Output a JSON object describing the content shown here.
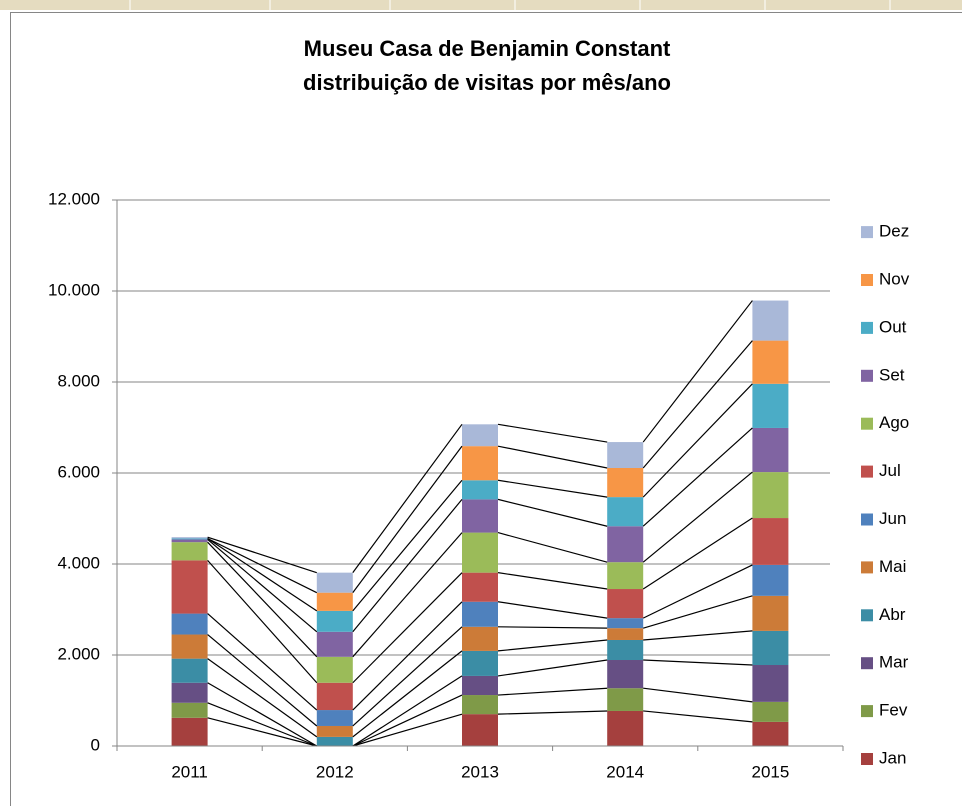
{
  "chart_data": {
    "type": "stacked_bar",
    "title": [
      "Museu Casa de Benjamin Constant",
      "distribuição de visitas por mês/ano"
    ],
    "categories": [
      "2011",
      "2012",
      "2013",
      "2014",
      "2015"
    ],
    "series": [
      {
        "name": "Jan",
        "color": "#a5403e",
        "values": [
          620,
          0,
          700,
          770,
          530
        ]
      },
      {
        "name": "Fev",
        "color": "#7f9a48",
        "values": [
          330,
          0,
          420,
          500,
          440
        ]
      },
      {
        "name": "Mar",
        "color": "#664f84",
        "values": [
          440,
          0,
          420,
          620,
          810
        ]
      },
      {
        "name": "Abr",
        "color": "#3b8da5",
        "values": [
          530,
          200,
          550,
          440,
          750
        ]
      },
      {
        "name": "Mai",
        "color": "#cc7b38",
        "values": [
          530,
          240,
          530,
          260,
          770
        ]
      },
      {
        "name": "Jun",
        "color": "#4f81bd",
        "values": [
          460,
          350,
          550,
          220,
          680
        ]
      },
      {
        "name": "Jul",
        "color": "#c0504d",
        "values": [
          1170,
          600,
          640,
          640,
          1030
        ]
      },
      {
        "name": "Ago",
        "color": "#9bbb59",
        "values": [
          400,
          570,
          880,
          590,
          1010
        ]
      },
      {
        "name": "Set",
        "color": "#8064a2",
        "values": [
          60,
          550,
          730,
          790,
          970
        ]
      },
      {
        "name": "Out",
        "color": "#4bacc6",
        "values": [
          20,
          460,
          420,
          640,
          970
        ]
      },
      {
        "name": "Nov",
        "color": "#f79646",
        "values": [
          0,
          400,
          750,
          640,
          950
        ]
      },
      {
        "name": "Dez",
        "color": "#a9b8d8",
        "values": [
          30,
          440,
          480,
          570,
          880
        ]
      }
    ],
    "ylim": [
      0,
      12000
    ],
    "yticks": [
      0,
      {
        "value": 2000,
        "label": "2.000"
      },
      {
        "value": 4000,
        "label": "4.000"
      },
      {
        "value": 6000,
        "label": "6.000"
      },
      {
        "value": 8000,
        "label": "8.000"
      },
      {
        "value": 10000,
        "label": "10.000"
      },
      {
        "value": 12000,
        "label": "12.000"
      }
    ],
    "grid": true,
    "legend": "right",
    "series_lines": true
  }
}
